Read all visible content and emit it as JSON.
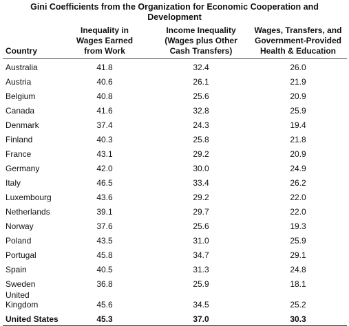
{
  "title": "Gini Coefficients from the Organization for Economic Cooperation and Development",
  "table": {
    "header": [
      "Country",
      "Inequality in Wages Earned from Work",
      "Income Inequality (Wages plus Other Cash Transfers)",
      "Wages, Transfers, and Government-Provided Health & Education"
    ],
    "rows": [
      [
        "Australia",
        "41.8",
        "32.4",
        "26.0"
      ],
      [
        "Austria",
        "40.6",
        "26.1",
        "21.9"
      ],
      [
        "Belgium",
        "40.8",
        "25.6",
        "20.9"
      ],
      [
        "Canada",
        "41.6",
        "32.8",
        "25.9"
      ],
      [
        "Denmark",
        "37.4",
        "24.3",
        "19.4"
      ],
      [
        "Finland",
        "40.3",
        "25.8",
        "21.8"
      ],
      [
        "France",
        "43.1",
        "29.2",
        "20.9"
      ],
      [
        "Germany",
        "42.0",
        "30.0",
        "24.9"
      ],
      [
        "Italy",
        "46.5",
        "33.4",
        "26.2"
      ],
      [
        "Luxembourg",
        "43.6",
        "29.2",
        "22.0"
      ],
      [
        "Netherlands",
        "39.1",
        "29.7",
        "22.0"
      ],
      [
        "Norway",
        "37.6",
        "25.6",
        "19.3"
      ],
      [
        "Poland",
        "43.5",
        "31.0",
        "25.9"
      ],
      [
        "Portugal",
        "45.8",
        "34.7",
        "29.1"
      ],
      [
        "Spain",
        "40.5",
        "31.3",
        "24.8"
      ],
      [
        "Sweden",
        "36.8",
        "25.9",
        "18.1"
      ],
      [
        "United Kingdom",
        "45.6",
        "34.5",
        "25.2"
      ],
      [
        "United States",
        "45.3",
        "37.0",
        "30.3"
      ]
    ]
  }
}
